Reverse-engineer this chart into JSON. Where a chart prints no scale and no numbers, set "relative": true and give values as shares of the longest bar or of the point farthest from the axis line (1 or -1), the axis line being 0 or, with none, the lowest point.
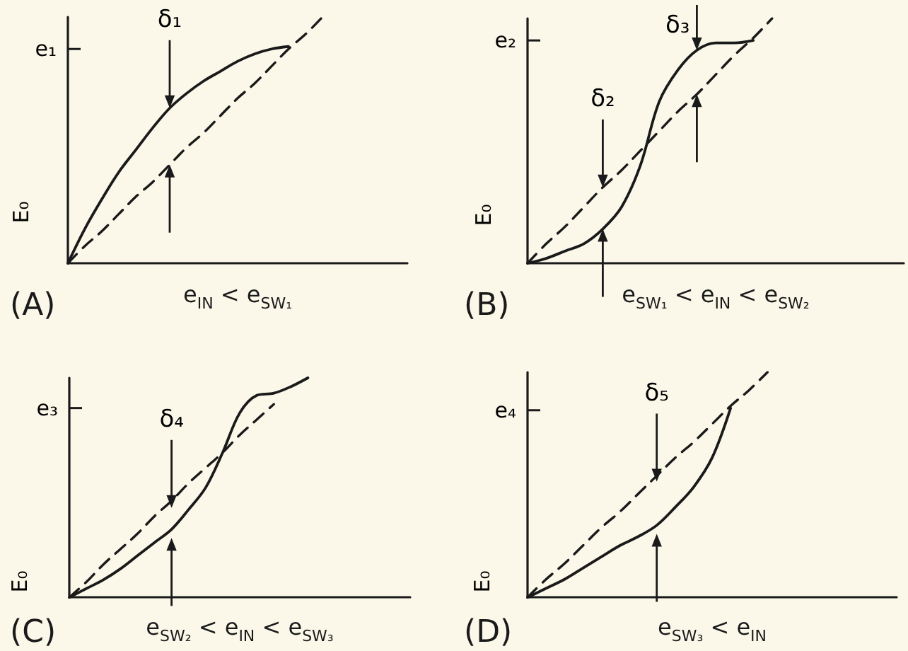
{
  "chart_data": [
    {
      "type": "line",
      "title": "(A)",
      "xlabel": "e$_{IN}$ < e$_{SW₁}$",
      "ylabel": "E₀",
      "relative": true,
      "marker": "none",
      "categories": [
        null,
        null,
        null,
        null,
        null,
        null,
        null,
        null,
        null,
        null,
        null,
        null,
        null,
        null,
        null,
        null,
        null,
        null,
        null,
        null,
        null
      ],
      "series": [
        {
          "color": "#1a1a1a",
          "line_style": "dashed",
          "values": [
            0,
            0.07,
            0.13,
            0.2,
            0.27,
            0.33,
            0.4,
            0.47,
            0.53,
            0.6,
            0.67,
            0.73,
            0.8,
            0.87,
            0.93,
            1,
            null,
            null,
            null,
            null,
            null
          ]
        },
        {
          "color": "#1a1a1a",
          "line_style": "solid",
          "values": [
            0,
            0.14,
            0.26,
            0.37,
            0.46,
            0.55,
            0.63,
            0.69,
            0.74,
            0.78,
            0.82,
            0.85,
            0.87,
            0.88,
            null,
            null,
            null,
            null,
            null,
            null,
            null
          ]
        }
      ],
      "ref_lines": [
        {
          "axis": "y",
          "value": 0.87,
          "label": "e₁"
        }
      ],
      "annotations": [
        "δ₁"
      ]
    },
    {
      "type": "line",
      "title": "(B)",
      "xlabel": "e$_{SW₁}$ < e$_{IN}$ < e$_{SW₂}$",
      "ylabel": "E₀",
      "relative": true,
      "marker": "none",
      "categories": [
        null,
        null,
        null,
        null,
        null,
        null,
        null,
        null,
        null,
        null,
        null,
        null,
        null,
        null,
        null,
        null,
        null,
        null,
        null,
        null,
        null
      ],
      "series": [
        {
          "color": "#1a1a1a",
          "line_style": "dashed",
          "values": [
            0,
            0.08,
            0.15,
            0.23,
            0.31,
            0.38,
            0.46,
            0.54,
            0.62,
            0.69,
            0.77,
            0.85,
            0.92,
            1,
            null,
            null,
            null,
            null,
            null,
            null,
            null
          ]
        },
        {
          "color": "#1a1a1a",
          "line_style": "solid",
          "values": [
            0,
            0.02,
            0.05,
            0.08,
            0.14,
            0.23,
            0.4,
            0.66,
            0.79,
            0.87,
            0.9,
            0.9,
            0.91,
            null,
            null,
            null,
            null,
            null,
            null,
            null,
            null
          ]
        }
      ],
      "ref_lines": [
        {
          "axis": "y",
          "value": 0.91,
          "label": "e₂"
        }
      ],
      "annotations": [
        "δ₂",
        "δ₃"
      ]
    },
    {
      "type": "line",
      "title": "(C)",
      "xlabel": "e$_{SW₂}$ < e$_{IN}$ < e$_{SW₃}$",
      "ylabel": "E₀",
      "relative": true,
      "marker": "none",
      "categories": [
        null,
        null,
        null,
        null,
        null,
        null,
        null,
        null,
        null,
        null,
        null,
        null,
        null,
        null,
        null,
        null,
        null,
        null,
        null,
        null,
        null
      ],
      "series": [
        {
          "color": "#1a1a1a",
          "line_style": "dashed",
          "values": [
            0,
            0.07,
            0.15,
            0.22,
            0.29,
            0.37,
            0.44,
            0.52,
            0.59,
            0.66,
            0.74,
            0.81,
            0.88,
            null,
            null,
            null,
            null,
            null,
            null,
            null,
            null
          ]
        },
        {
          "color": "#1a1a1a",
          "line_style": "solid",
          "values": [
            0,
            0.04,
            0.08,
            0.13,
            0.19,
            0.25,
            0.31,
            0.4,
            0.5,
            0.66,
            0.84,
            0.92,
            0.93,
            0.96,
            1,
            null,
            null,
            null,
            null,
            null,
            null
          ]
        }
      ],
      "ref_lines": [
        {
          "axis": "y",
          "value": 0.87,
          "label": "e₃"
        }
      ],
      "annotations": [
        "δ₄"
      ]
    },
    {
      "type": "line",
      "title": "(D)",
      "xlabel": "e$_{SW₃}$ < e$_{IN}$",
      "ylabel": "E₀",
      "relative": true,
      "marker": "none",
      "categories": [
        null,
        null,
        null,
        null,
        null,
        null,
        null,
        null,
        null,
        null,
        null,
        null,
        null,
        null,
        null,
        null,
        null,
        null,
        null,
        null,
        null
      ],
      "series": [
        {
          "color": "#1a1a1a",
          "line_style": "dashed",
          "values": [
            0,
            0.08,
            0.15,
            0.23,
            0.31,
            0.38,
            0.46,
            0.54,
            0.62,
            0.69,
            0.77,
            0.85,
            0.92,
            1,
            null,
            null,
            null,
            null,
            null,
            null,
            null
          ]
        },
        {
          "color": "#1a1a1a",
          "line_style": "solid",
          "values": [
            0,
            0.04,
            0.08,
            0.13,
            0.18,
            0.23,
            0.27,
            0.32,
            0.4,
            0.49,
            0.62,
            0.84,
            null,
            null,
            null,
            null,
            null,
            null,
            null,
            null,
            null
          ]
        }
      ],
      "ref_lines": [
        {
          "axis": "y",
          "value": 0.84,
          "label": "e₄"
        }
      ],
      "annotations": [
        "δ₅"
      ]
    }
  ]
}
